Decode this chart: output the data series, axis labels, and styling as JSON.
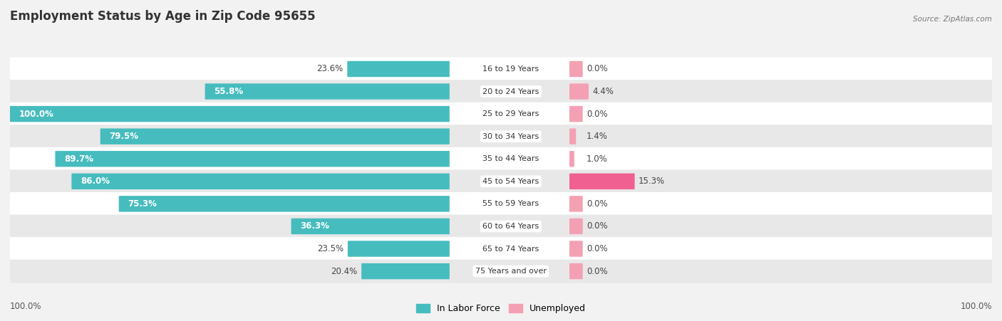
{
  "title": "Employment Status by Age in Zip Code 95655",
  "source": "Source: ZipAtlas.com",
  "age_groups": [
    "16 to 19 Years",
    "20 to 24 Years",
    "25 to 29 Years",
    "30 to 34 Years",
    "35 to 44 Years",
    "45 to 54 Years",
    "55 to 59 Years",
    "60 to 64 Years",
    "65 to 74 Years",
    "75 Years and over"
  ],
  "in_labor_force": [
    23.6,
    55.8,
    100.0,
    79.5,
    89.7,
    86.0,
    75.3,
    36.3,
    23.5,
    20.4
  ],
  "unemployed": [
    0.0,
    4.4,
    0.0,
    1.4,
    1.0,
    15.3,
    0.0,
    0.0,
    0.0,
    0.0
  ],
  "labor_color": "#46bcbe",
  "unemployed_color": "#f4a0b4",
  "unemployed_color_strong": "#f06090",
  "background_color": "#f2f2f2",
  "row_white": "#ffffff",
  "row_gray": "#e8e8e8",
  "title_fontsize": 12,
  "label_fontsize": 8.5,
  "legend_fontsize": 9,
  "axis_label_fontsize": 8.5,
  "max_lf": 100.0,
  "max_ue": 100.0
}
